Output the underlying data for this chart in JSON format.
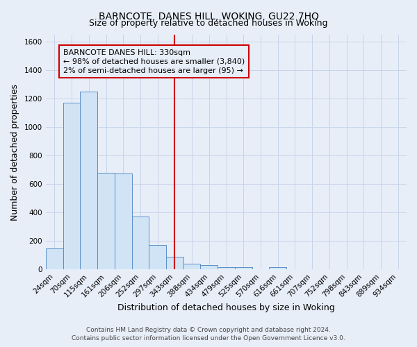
{
  "title": "BARNCOTE, DANES HILL, WOKING, GU22 7HQ",
  "subtitle": "Size of property relative to detached houses in Woking",
  "xlabel": "Distribution of detached houses by size in Woking",
  "ylabel": "Number of detached properties",
  "categories": [
    "24sqm",
    "70sqm",
    "115sqm",
    "161sqm",
    "206sqm",
    "252sqm",
    "297sqm",
    "343sqm",
    "388sqm",
    "434sqm",
    "479sqm",
    "525sqm",
    "570sqm",
    "616sqm",
    "661sqm",
    "707sqm",
    "752sqm",
    "798sqm",
    "843sqm",
    "889sqm",
    "934sqm"
  ],
  "values": [
    150,
    1170,
    1250,
    680,
    675,
    370,
    170,
    90,
    40,
    32,
    18,
    15,
    0,
    15,
    0,
    0,
    0,
    0,
    0,
    0,
    0
  ],
  "bar_color": "#d0e4f5",
  "bar_edge_color": "#5b8fc9",
  "marker_line_color": "#cc0000",
  "annotation_box_edge": "#cc0000",
  "annotation_text_line1": "BARNCOTE DANES HILL: 330sqm",
  "annotation_text_line2": "← 98% of detached houses are smaller (3,840)",
  "annotation_text_line3": "2% of semi-detached houses are larger (95) →",
  "ylim": [
    0,
    1650
  ],
  "yticks": [
    0,
    200,
    400,
    600,
    800,
    1000,
    1200,
    1400,
    1600
  ],
  "footer1": "Contains HM Land Registry data © Crown copyright and database right 2024.",
  "footer2": "Contains public sector information licensed under the Open Government Licence v3.0.",
  "bg_color": "#e8eef8",
  "plot_bg_color": "#e8eef8",
  "grid_color": "#c8d4e8",
  "title_fontsize": 10,
  "subtitle_fontsize": 9,
  "xlabel_fontsize": 9,
  "ylabel_fontsize": 9,
  "tick_fontsize": 7.5,
  "annotation_fontsize": 8,
  "footer_fontsize": 6.5
}
